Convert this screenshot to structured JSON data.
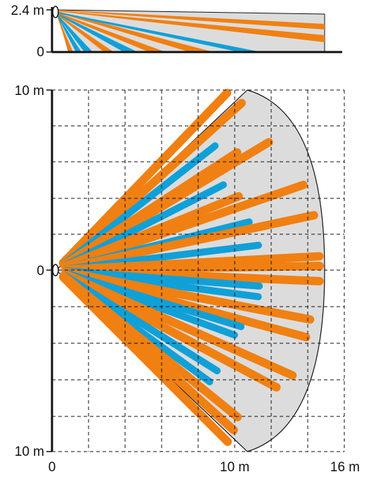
{
  "side_view": {
    "height_label": "2.4 m",
    "zero_label": "0"
  },
  "top_view": {
    "y_top_label": "10 m",
    "y_mid_label": "0",
    "y_bottom_label": "10 m",
    "x_labels": [
      "0",
      "10 m",
      "16 m"
    ]
  },
  "colors": {
    "orange": "#f08012",
    "blue": "#10a0d8",
    "coverage_fill": "#dcdcdc",
    "outline": "#111111"
  },
  "chart_data": {
    "type": "diagram",
    "subject": "PIR motion detector coverage pattern",
    "side_view": {
      "mount_height_m": 2.4,
      "max_range_m": 16
    },
    "top_view": {
      "x_range_m": [
        0,
        16
      ],
      "y_range_m": [
        -10,
        10
      ],
      "grid": true,
      "zone_colors": [
        "orange",
        "blue"
      ]
    }
  }
}
